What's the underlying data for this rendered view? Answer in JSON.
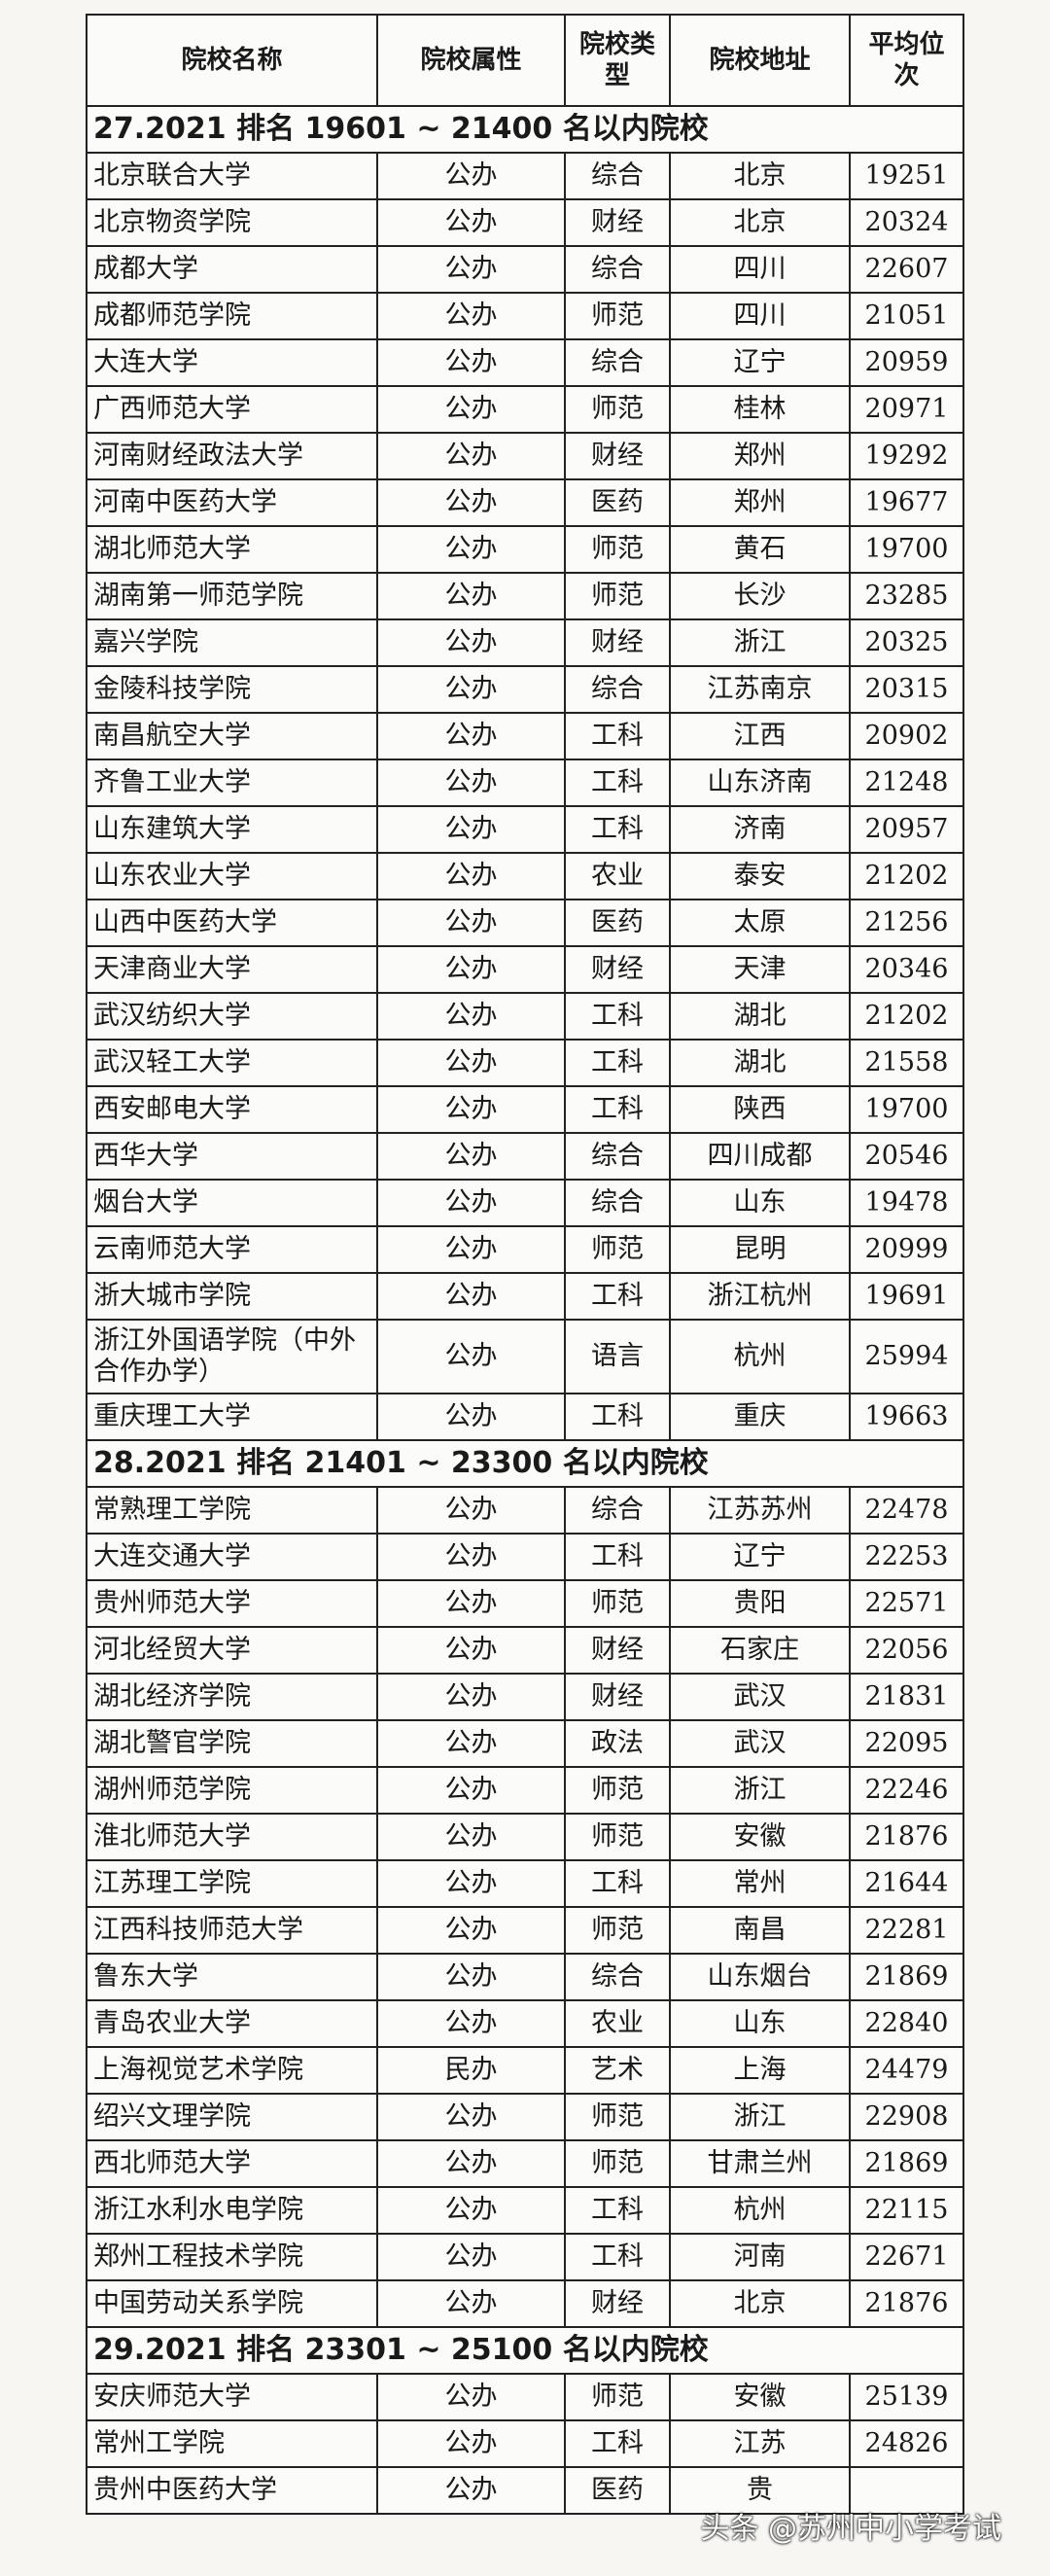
{
  "headers": [
    "院校名称",
    "院校属性",
    "院校类型",
    "院校地址",
    "平均位次"
  ],
  "sections": [
    {
      "title": "27.2021 排名 19601 ~ 21400 名以内院校",
      "rows": [
        [
          "北京联合大学",
          "公办",
          "综合",
          "北京",
          "19251"
        ],
        [
          "北京物资学院",
          "公办",
          "财经",
          "北京",
          "20324"
        ],
        [
          "成都大学",
          "公办",
          "综合",
          "四川",
          "22607"
        ],
        [
          "成都师范学院",
          "公办",
          "师范",
          "四川",
          "21051"
        ],
        [
          "大连大学",
          "公办",
          "综合",
          "辽宁",
          "20959"
        ],
        [
          "广西师范大学",
          "公办",
          "师范",
          "桂林",
          "20971"
        ],
        [
          "河南财经政法大学",
          "公办",
          "财经",
          "郑州",
          "19292"
        ],
        [
          "河南中医药大学",
          "公办",
          "医药",
          "郑州",
          "19677"
        ],
        [
          "湖北师范大学",
          "公办",
          "师范",
          "黄石",
          "19700"
        ],
        [
          "湖南第一师范学院",
          "公办",
          "师范",
          "长沙",
          "23285"
        ],
        [
          "嘉兴学院",
          "公办",
          "财经",
          "浙江",
          "20325"
        ],
        [
          "金陵科技学院",
          "公办",
          "综合",
          "江苏南京",
          "20315"
        ],
        [
          "南昌航空大学",
          "公办",
          "工科",
          "江西",
          "20902"
        ],
        [
          "齐鲁工业大学",
          "公办",
          "工科",
          "山东济南",
          "21248"
        ],
        [
          "山东建筑大学",
          "公办",
          "工科",
          "济南",
          "20957"
        ],
        [
          "山东农业大学",
          "公办",
          "农业",
          "泰安",
          "21202"
        ],
        [
          "山西中医药大学",
          "公办",
          "医药",
          "太原",
          "21256"
        ],
        [
          "天津商业大学",
          "公办",
          "财经",
          "天津",
          "20346"
        ],
        [
          "武汉纺织大学",
          "公办",
          "工科",
          "湖北",
          "21202"
        ],
        [
          "武汉轻工大学",
          "公办",
          "工科",
          "湖北",
          "21558"
        ],
        [
          "西安邮电大学",
          "公办",
          "工科",
          "陕西",
          "19700"
        ],
        [
          "西华大学",
          "公办",
          "综合",
          "四川成都",
          "20546"
        ],
        [
          "烟台大学",
          "公办",
          "综合",
          "山东",
          "19478"
        ],
        [
          "云南师范大学",
          "公办",
          "师范",
          "昆明",
          "20999"
        ],
        [
          "浙大城市学院",
          "公办",
          "工科",
          "浙江杭州",
          "19691"
        ],
        [
          "浙江外国语学院（中外合作办学）",
          "公办",
          "语言",
          "杭州",
          "25994"
        ],
        [
          "重庆理工大学",
          "公办",
          "工科",
          "重庆",
          "19663"
        ]
      ]
    },
    {
      "title": "28.2021 排名 21401 ~ 23300 名以内院校",
      "rows": [
        [
          "常熟理工学院",
          "公办",
          "综合",
          "江苏苏州",
          "22478"
        ],
        [
          "大连交通大学",
          "公办",
          "工科",
          "辽宁",
          "22253"
        ],
        [
          "贵州师范大学",
          "公办",
          "师范",
          "贵阳",
          "22571"
        ],
        [
          "河北经贸大学",
          "公办",
          "财经",
          "石家庄",
          "22056"
        ],
        [
          "湖北经济学院",
          "公办",
          "财经",
          "武汉",
          "21831"
        ],
        [
          "湖北警官学院",
          "公办",
          "政法",
          "武汉",
          "22095"
        ],
        [
          "湖州师范学院",
          "公办",
          "师范",
          "浙江",
          "22246"
        ],
        [
          "淮北师范大学",
          "公办",
          "师范",
          "安徽",
          "21876"
        ],
        [
          "江苏理工学院",
          "公办",
          "工科",
          "常州",
          "21644"
        ],
        [
          "江西科技师范大学",
          "公办",
          "师范",
          "南昌",
          "22281"
        ],
        [
          "鲁东大学",
          "公办",
          "综合",
          "山东烟台",
          "21869"
        ],
        [
          "青岛农业大学",
          "公办",
          "农业",
          "山东",
          "22840"
        ],
        [
          "上海视觉艺术学院",
          "民办",
          "艺术",
          "上海",
          "24479"
        ],
        [
          "绍兴文理学院",
          "公办",
          "师范",
          "浙江",
          "22908"
        ],
        [
          "西北师范大学",
          "公办",
          "师范",
          "甘肃兰州",
          "21869"
        ],
        [
          "浙江水利水电学院",
          "公办",
          "工科",
          "杭州",
          "22115"
        ],
        [
          "郑州工程技术学院",
          "公办",
          "工科",
          "河南",
          "22671"
        ],
        [
          "中国劳动关系学院",
          "公办",
          "财经",
          "北京",
          "21876"
        ]
      ]
    },
    {
      "title": "29.2021 排名 23301 ~ 25100 名以内院校",
      "rows": [
        [
          "安庆师范大学",
          "公办",
          "师范",
          "安徽",
          "25139"
        ],
        [
          "常州工学院",
          "公办",
          "工科",
          "江苏",
          "24826"
        ],
        [
          "贵州中医药大学",
          "公办",
          "医药",
          "贵",
          ""
        ]
      ]
    }
  ],
  "watermark": "头条 @苏州中小学考试"
}
